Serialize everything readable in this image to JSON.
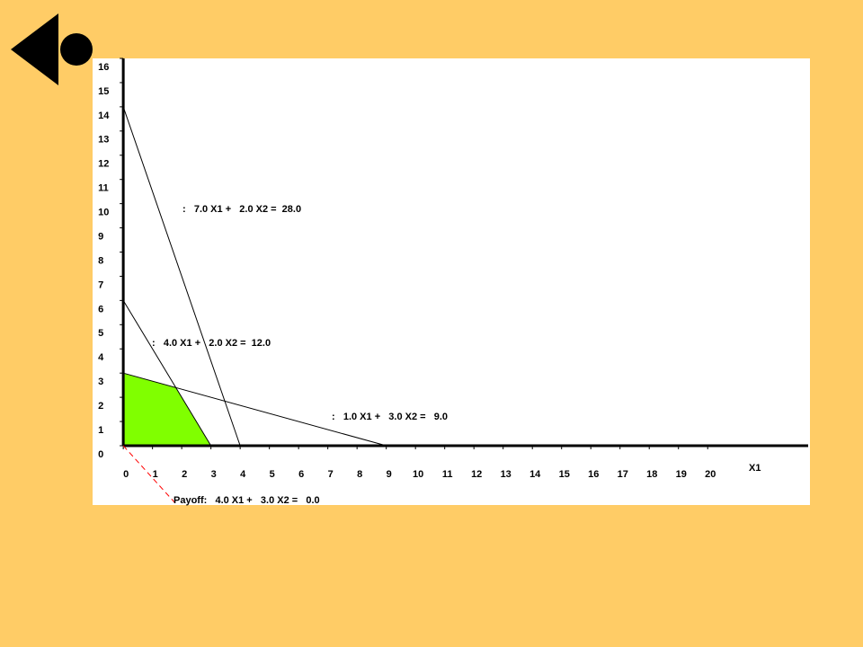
{
  "chart_data": {
    "type": "line",
    "x_label": "X1",
    "xlim": [
      -1.05,
      23.5
    ],
    "ylim": [
      -2.45,
      16
    ],
    "xticks": [
      0,
      1,
      2,
      3,
      4,
      5,
      6,
      7,
      8,
      9,
      10,
      11,
      12,
      13,
      14,
      15,
      16,
      17,
      18,
      19,
      20
    ],
    "yticks": [
      0,
      1,
      2,
      3,
      4,
      5,
      6,
      7,
      8,
      9,
      10,
      11,
      12,
      13,
      14,
      15,
      16
    ],
    "series": [
      {
        "label": ":   7.0 X1 +   2.0 X2 =  28.0",
        "color": "#000000",
        "x": [
          0,
          4
        ],
        "values": [
          14,
          0
        ]
      },
      {
        "label": ":   4.0 X1 +   2.0 X2 =  12.0",
        "color": "#000000",
        "x": [
          0,
          3
        ],
        "values": [
          6,
          0
        ]
      },
      {
        "label": ":   1.0 X1 +   3.0 X2 =   9.0",
        "color": "#000000",
        "x": [
          0,
          9
        ],
        "values": [
          3,
          0
        ]
      }
    ],
    "region": {
      "color": "#80ff00",
      "x": [
        0,
        0,
        1.8,
        3
      ],
      "values": [
        0,
        3,
        2.4,
        0
      ]
    },
    "payoff": {
      "label": "Payoff:   4.0 X1 +   3.0 X2 =   0.0",
      "color": "#ff0000",
      "x": [
        0,
        1.8
      ],
      "values": [
        0,
        -2.4
      ]
    }
  }
}
